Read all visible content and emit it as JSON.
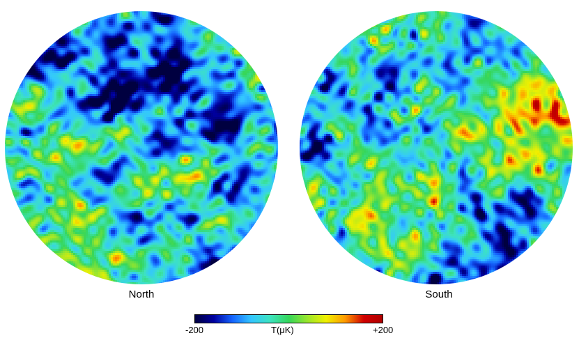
{
  "panels": {
    "north_label": "North",
    "south_label": "South"
  },
  "colorbar": {
    "min_label": "-200",
    "quantity_label": "T(μK)",
    "max_label": "+200",
    "min_value": -200,
    "max_value": 200,
    "colors": [
      "#000040",
      "#0000a0",
      "#1565ff",
      "#33c6ff",
      "#3de3c0",
      "#35d65a",
      "#9ae62c",
      "#f0f000",
      "#ff9a00",
      "#d00000",
      "#b00000"
    ]
  }
}
